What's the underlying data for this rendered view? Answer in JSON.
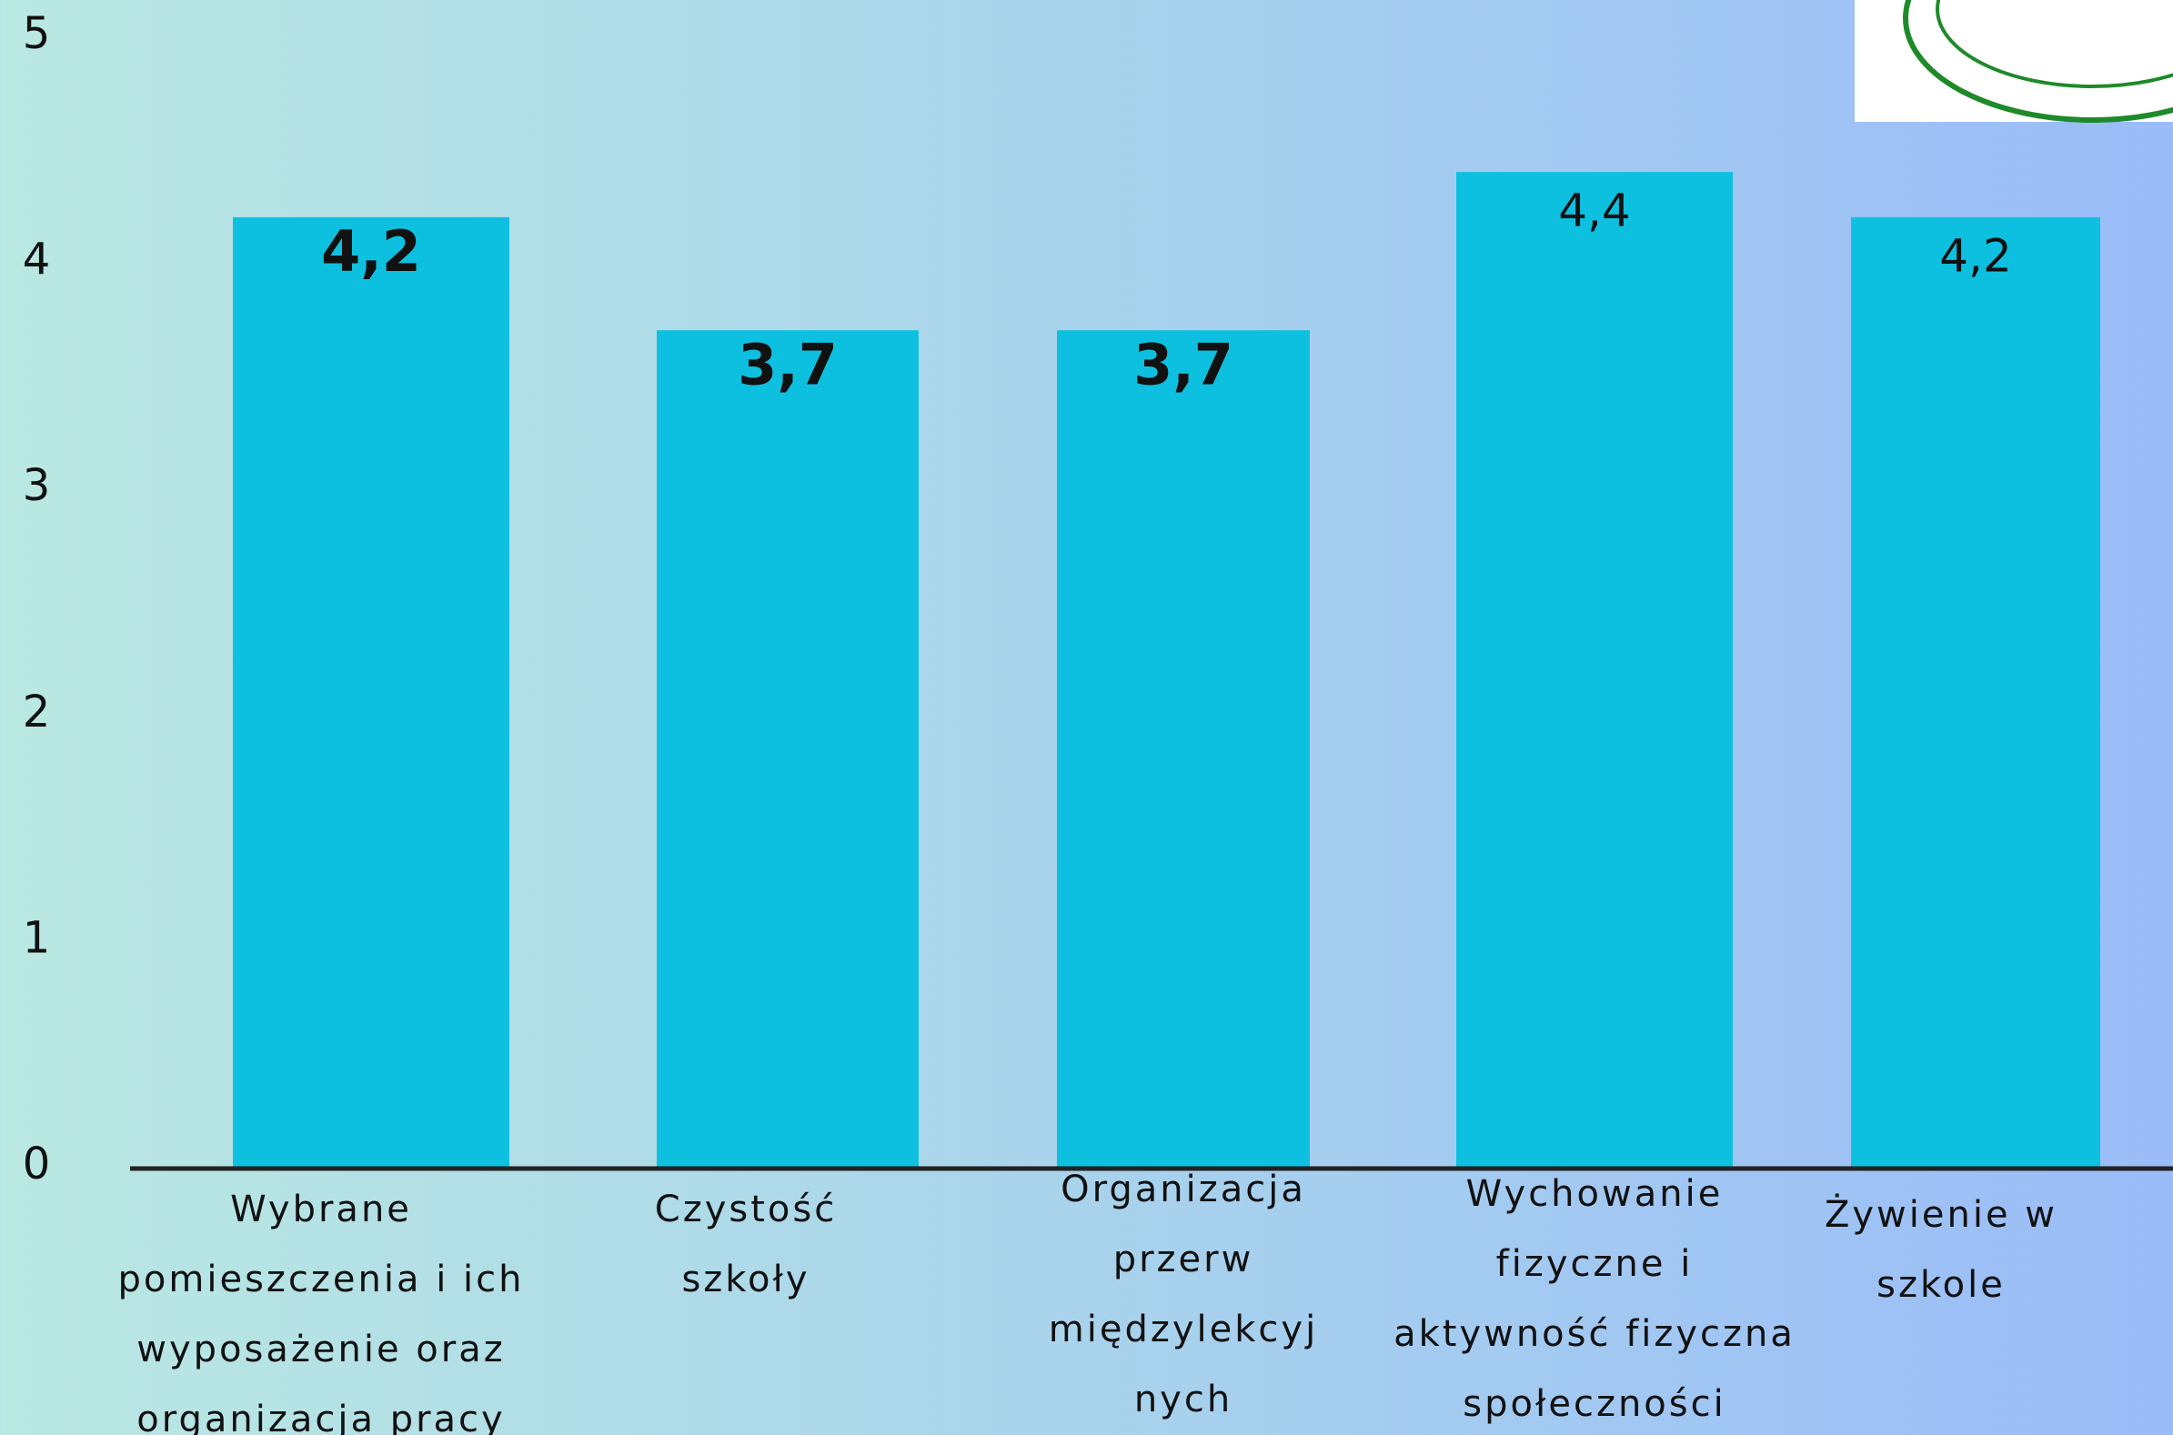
{
  "chart_data": {
    "type": "bar",
    "categories": [
      "Wybrane\npomieszczenia i ich\nwyposażenie oraz\norganizacja pracy",
      "Czystość\nszkoły",
      "Organizacja\nprzerw\nmiędzylekcyj\nnych",
      "Wychowanie\nfizyczne i\naktywność fizyczna\nspołeczności",
      "Żywienie w\nszkole"
    ],
    "values": [
      4.2,
      3.7,
      3.7,
      4.4,
      4.2
    ],
    "value_labels": [
      "4,2",
      "3,7",
      "3,7",
      "4,4",
      "4,2"
    ],
    "color": "#0ec0e0",
    "ylim": [
      0,
      5
    ],
    "yticks": [
      0,
      1,
      2,
      3,
      4,
      5
    ],
    "grid": false
  }
}
